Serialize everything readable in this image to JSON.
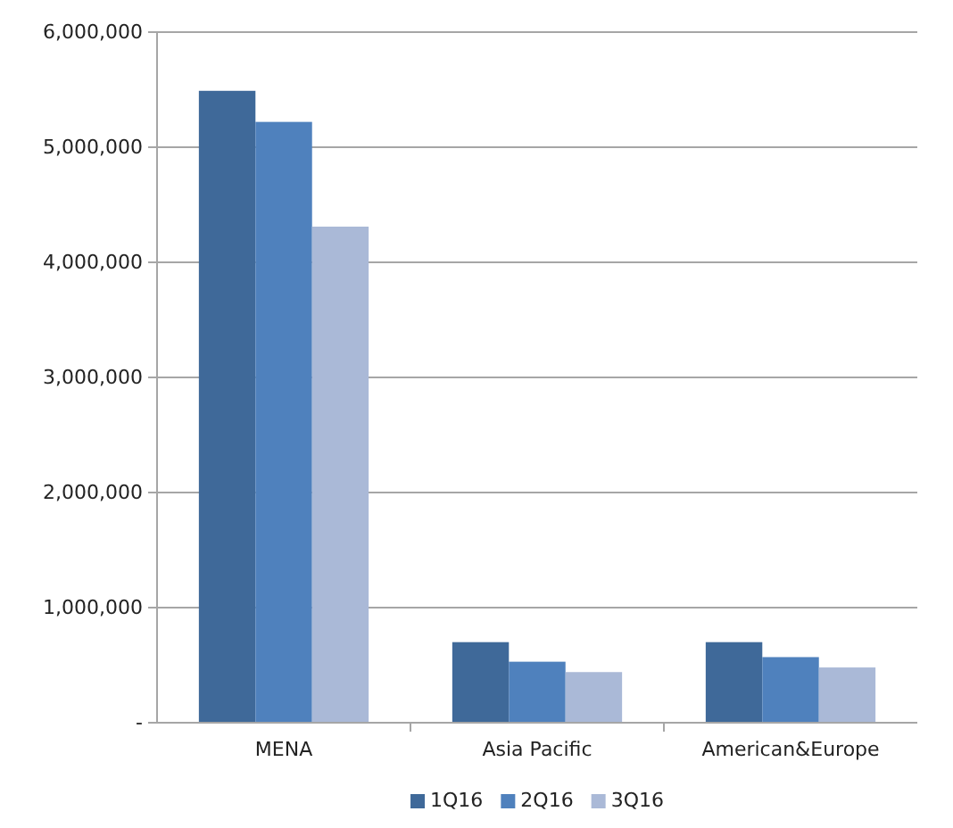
{
  "chart_data": {
    "type": "bar",
    "categories": [
      "MENA",
      "Asia Pacific",
      "American&Europe"
    ],
    "series": [
      {
        "name": "1Q16",
        "color": "#3f6999",
        "values": [
          5490000,
          700000,
          700000
        ]
      },
      {
        "name": "2Q16",
        "color": "#4f81bd",
        "values": [
          5220000,
          530000,
          570000
        ]
      },
      {
        "name": "3Q16",
        "color": "#aab9d7",
        "values": [
          4310000,
          440000,
          480000
        ]
      }
    ],
    "ylim": [
      0,
      6000000
    ],
    "yticks": [
      {
        "value": 0,
        "label": "-"
      },
      {
        "value": 1000000,
        "label": "1,000,000"
      },
      {
        "value": 2000000,
        "label": "2,000,000"
      },
      {
        "value": 3000000,
        "label": "3,000,000"
      },
      {
        "value": 4000000,
        "label": "4,000,000"
      },
      {
        "value": 5000000,
        "label": "5,000,000"
      },
      {
        "value": 6000000,
        "label": "6,000,000"
      }
    ],
    "grid": "y",
    "legend": "bottom"
  }
}
